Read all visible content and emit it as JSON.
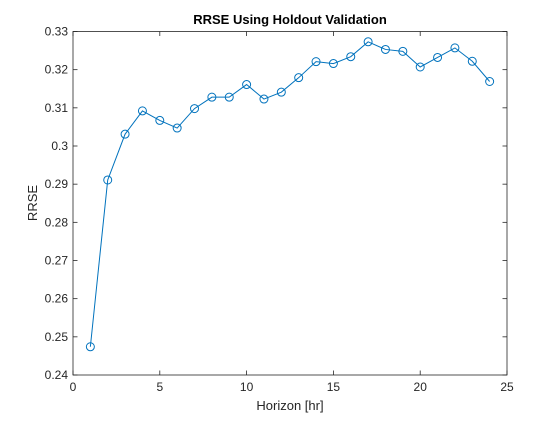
{
  "chart_data": {
    "type": "line",
    "title": "RRSE Using Holdout Validation",
    "xlabel": "Horizon [hr]",
    "ylabel": "RRSE",
    "xlim": [
      0,
      25
    ],
    "ylim": [
      0.24,
      0.33
    ],
    "xticks": [
      0,
      5,
      10,
      15,
      20,
      25
    ],
    "xtick_labels": [
      "0",
      "5",
      "10",
      "15",
      "20",
      "25"
    ],
    "yticks": [
      0.24,
      0.25,
      0.26,
      0.27,
      0.28,
      0.29,
      0.3,
      0.31,
      0.32,
      0.33
    ],
    "ytick_labels": [
      "0.24",
      "0.25",
      "0.26",
      "0.27",
      "0.28",
      "0.29",
      "0.3",
      "0.31",
      "0.32",
      "0.33"
    ],
    "grid": false,
    "marker": "circle",
    "series": [
      {
        "color": "#0072BD",
        "x": [
          1,
          2,
          3,
          4,
          5,
          6,
          7,
          8,
          9,
          10,
          11,
          12,
          13,
          14,
          15,
          16,
          17,
          18,
          19,
          20,
          21,
          22,
          23,
          24
        ],
        "y": [
          0.2474,
          0.2911,
          0.3031,
          0.3092,
          0.3067,
          0.3047,
          0.3098,
          0.3128,
          0.3128,
          0.3161,
          0.3123,
          0.3141,
          0.3179,
          0.3221,
          0.3216,
          0.3234,
          0.3273,
          0.3253,
          0.3248,
          0.3207,
          0.3232,
          0.3257,
          0.3222,
          0.3169
        ]
      }
    ]
  }
}
